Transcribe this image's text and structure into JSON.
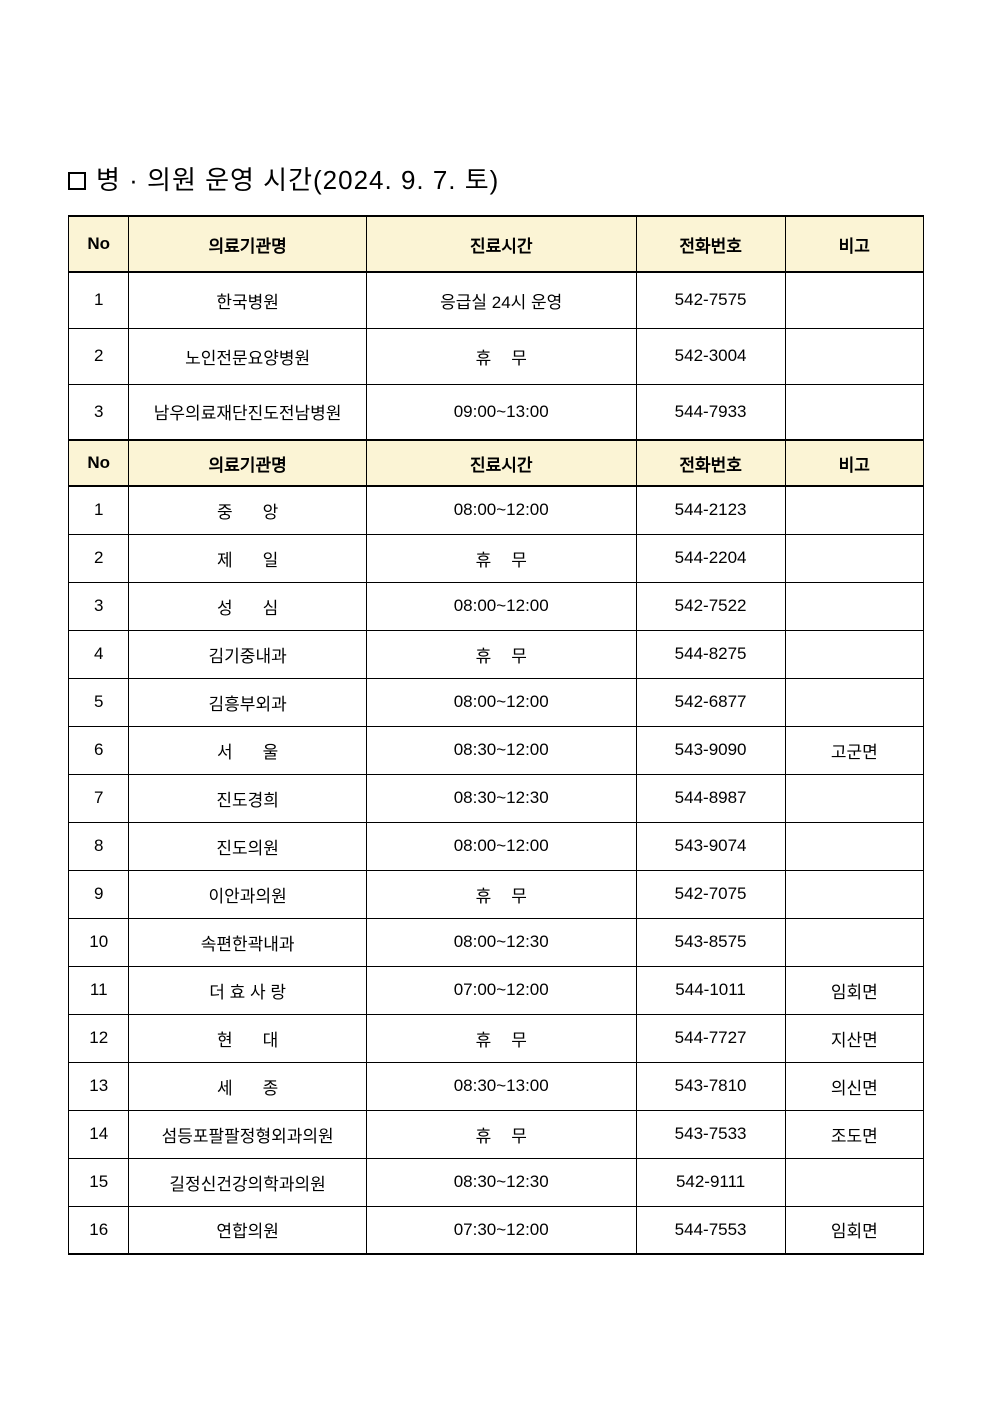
{
  "title": "병 · 의원 운영 시간(2024. 9. 7. 토)",
  "headers": {
    "no": "No",
    "name": "의료기관명",
    "hours": "진료시간",
    "phone": "전화번호",
    "note": "비고"
  },
  "hospitals": [
    {
      "no": "1",
      "name": "한국병원",
      "hours": "응급실 24시 운영",
      "phone": "542-7575",
      "note": ""
    },
    {
      "no": "2",
      "name": "노인전문요양병원",
      "hours": "휴무",
      "phone": "542-3004",
      "note": "",
      "closed": true
    },
    {
      "no": "3",
      "name": "남우의료재단진도전남병원",
      "hours": "09:00~13:00",
      "phone": "544-7933",
      "note": ""
    }
  ],
  "clinics": [
    {
      "no": "1",
      "name": "중앙",
      "hours": "08:00~12:00",
      "phone": "544-2123",
      "note": "",
      "spaced": true
    },
    {
      "no": "2",
      "name": "제일",
      "hours": "휴무",
      "phone": "544-2204",
      "note": "",
      "spaced": true,
      "closed": true
    },
    {
      "no": "3",
      "name": "성심",
      "hours": "08:00~12:00",
      "phone": "542-7522",
      "note": "",
      "spaced": true
    },
    {
      "no": "4",
      "name": "김기중내과",
      "hours": "휴무",
      "phone": "544-8275",
      "note": "",
      "closed": true
    },
    {
      "no": "5",
      "name": "김흥부외과",
      "hours": "08:00~12:00",
      "phone": "542-6877",
      "note": ""
    },
    {
      "no": "6",
      "name": "서울",
      "hours": "08:30~12:00",
      "phone": "543-9090",
      "note": "고군면",
      "spaced": true
    },
    {
      "no": "7",
      "name": "진도경희",
      "hours": "08:30~12:30",
      "phone": "544-8987",
      "note": ""
    },
    {
      "no": "8",
      "name": "진도의원",
      "hours": "08:00~12:00",
      "phone": "543-9074",
      "note": ""
    },
    {
      "no": "9",
      "name": "이안과의원",
      "hours": "휴무",
      "phone": "542-7075",
      "note": "",
      "closed": true
    },
    {
      "no": "10",
      "name": "속편한곽내과",
      "hours": "08:00~12:30",
      "phone": "543-8575",
      "note": ""
    },
    {
      "no": "11",
      "name": "더 효 사 랑",
      "hours": "07:00~12:00",
      "phone": "544-1011",
      "note": "임회면"
    },
    {
      "no": "12",
      "name": "현대",
      "hours": "휴무",
      "phone": "544-7727",
      "note": "지산면",
      "spaced": true,
      "closed": true
    },
    {
      "no": "13",
      "name": "세종",
      "hours": "08:30~13:00",
      "phone": "543-7810",
      "note": "의신면",
      "spaced": true
    },
    {
      "no": "14",
      "name": "섬등포팔팔정형외과의원",
      "hours": "휴무",
      "phone": "543-7533",
      "note": "조도면",
      "closed": true
    },
    {
      "no": "15",
      "name": "길정신건강의학과의원",
      "hours": "08:30~12:30",
      "phone": "542-9111",
      "note": ""
    },
    {
      "no": "16",
      "name": "연합의원",
      "hours": "07:30~12:00",
      "phone": "544-7553",
      "note": "임회면"
    }
  ],
  "colors": {
    "header_bg": "#fbf4d5",
    "border": "#000000",
    "background": "#ffffff"
  }
}
